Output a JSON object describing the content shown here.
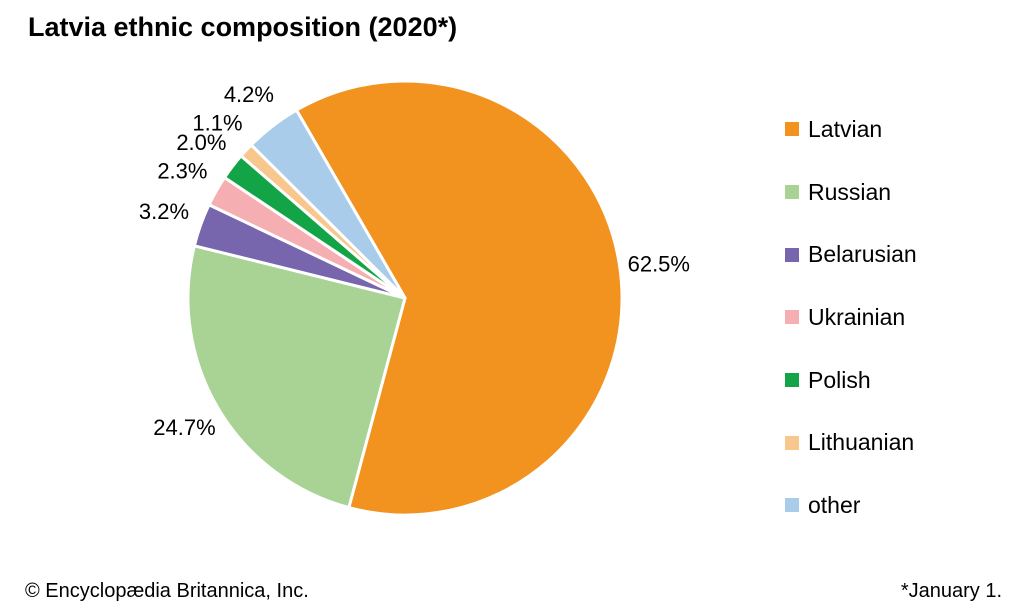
{
  "title": "Latvia ethnic composition (2020*)",
  "footer": {
    "left": "© Encyclopædia Britannica, Inc.",
    "right": "*January 1."
  },
  "chart_data": {
    "type": "pie",
    "title": "Latvia ethnic composition (2020*)",
    "unit": "%",
    "direction": "clockwise",
    "start_angle_deg": -30,
    "legend_position": "right",
    "slices": [
      {
        "label": "Latvian",
        "value": 62.5,
        "pct_label": "62.5%",
        "color": "#F2921F"
      },
      {
        "label": "Russian",
        "value": 24.7,
        "pct_label": "24.7%",
        "color": "#A9D295"
      },
      {
        "label": "Belarusian",
        "value": 3.2,
        "pct_label": "3.2%",
        "color": "#7766AE"
      },
      {
        "label": "Ukrainian",
        "value": 2.3,
        "pct_label": "2.3%",
        "color": "#F5AFB2"
      },
      {
        "label": "Polish",
        "value": 2.0,
        "pct_label": "2.0%",
        "color": "#12A447"
      },
      {
        "label": "Lithuanian",
        "value": 1.1,
        "pct_label": "1.1%",
        "color": "#F7C78E"
      },
      {
        "label": "other",
        "value": 4.2,
        "pct_label": "4.2%",
        "color": "#A8CCEA"
      }
    ]
  }
}
